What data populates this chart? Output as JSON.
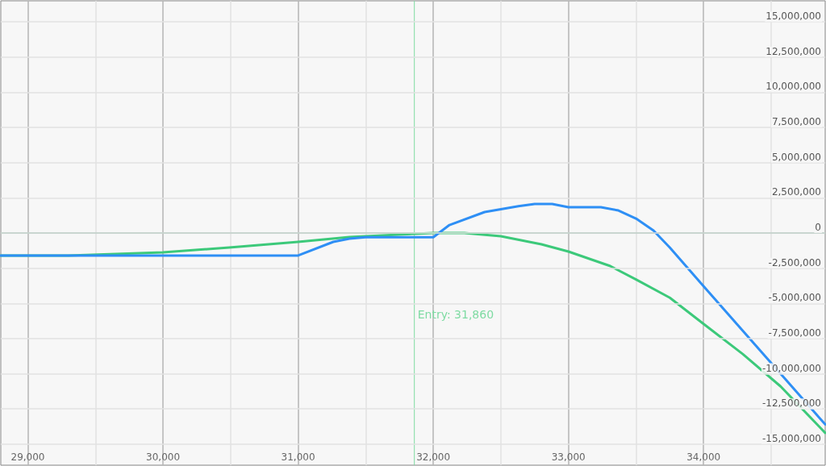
{
  "chart_data": {
    "type": "line",
    "xlim": [
      28800,
      34900
    ],
    "xticks": [
      {
        "value": 29000,
        "label": "29,000"
      },
      {
        "value": 30000,
        "label": "30,000"
      },
      {
        "value": 31000,
        "label": "31,000"
      },
      {
        "value": 32000,
        "label": "32,000"
      },
      {
        "value": 33000,
        "label": "33,000"
      },
      {
        "value": 34000,
        "label": "34,000"
      }
    ],
    "ylim": [
      -16500000,
      16500000
    ],
    "yticks": [
      {
        "value": -15000000,
        "label": "-15,000,000"
      },
      {
        "value": -12500000,
        "label": "-12,500,000"
      },
      {
        "value": -10000000,
        "label": "-10,000,000"
      },
      {
        "value": -7500000,
        "label": "-7,500,000"
      },
      {
        "value": -5000000,
        "label": "-5,000,000"
      },
      {
        "value": -2500000,
        "label": "-2,500,000"
      },
      0,
      {
        "value": 2500000,
        "label": "2,500,000"
      },
      {
        "value": 5000000,
        "label": "5,000,000"
      },
      {
        "value": 7500000,
        "label": "7,500,000"
      },
      {
        "value": 10000000,
        "label": "10,000,000"
      },
      {
        "value": 12500000,
        "label": "12,500,000"
      },
      {
        "value": 15000000,
        "label": "15,000,000"
      }
    ],
    "grid": true,
    "marker": "none",
    "line_style": "solid",
    "series": [
      {
        "color": "#3cc97a",
        "x": [
          28800,
          29300,
          30000,
          30490,
          31000,
          31380,
          31860,
          32000,
          32230,
          32500,
          32800,
          33000,
          33310,
          33500,
          33750,
          34000,
          34290,
          34570,
          34900
        ],
        "values": [
          -1600000,
          -1600000,
          -1370000,
          -1030000,
          -630000,
          -290000,
          -60000,
          0,
          0,
          -230000,
          -800000,
          -1320000,
          -2350000,
          -3300000,
          -4600000,
          -6460000,
          -8600000,
          -10900000,
          -14200000
        ]
      },
      {
        "color": "#2e8ff5",
        "x": [
          28800,
          31000,
          31260,
          31380,
          31500,
          32000,
          32120,
          32380,
          32630,
          32750,
          32880,
          33000,
          33240,
          33370,
          33500,
          33630,
          33750,
          34000,
          34900
        ],
        "values": [
          -1600000,
          -1600000,
          -630000,
          -400000,
          -300000,
          -300000,
          570000,
          1490000,
          1900000,
          2060000,
          2060000,
          1830000,
          1830000,
          1600000,
          1030000,
          170000,
          -1030000,
          -3780000,
          -13600000
        ]
      }
    ],
    "ref_lines": [
      {
        "axis": "y",
        "value": 0,
        "color": "#5a9e7c"
      },
      {
        "axis": "x",
        "value": 31860,
        "label": "Entry: 31,860",
        "color": "#7fdba3"
      }
    ]
  }
}
